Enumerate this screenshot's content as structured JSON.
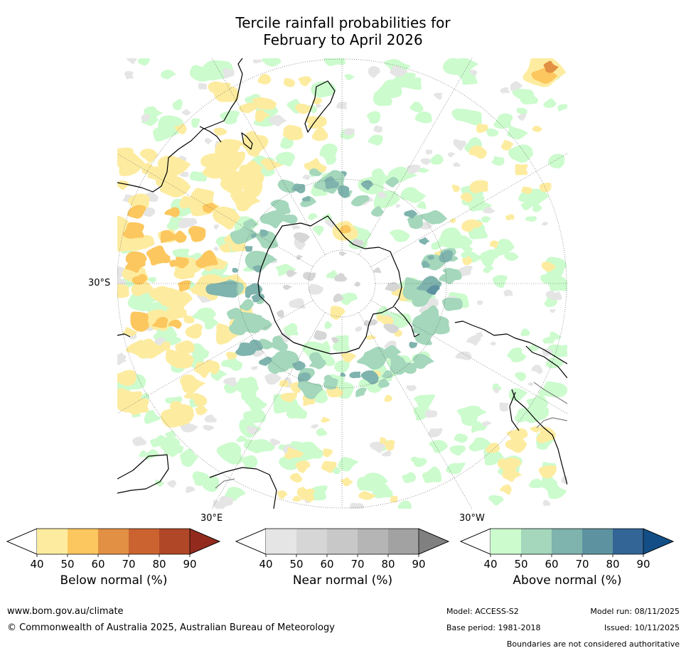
{
  "title": {
    "line1": "Tercile rainfall probabilities for",
    "line2": "February to April 2026"
  },
  "map": {
    "projection": "south-polar-stereographic",
    "center": "South Pole",
    "latitude_circles": [
      -30,
      -60,
      -80
    ],
    "meridian_spacing_deg": 30,
    "labels": {
      "lat_30s": "30°S",
      "lon_30e": "30°E",
      "lon_30w": "30°W"
    },
    "colors": {
      "coast": "#000000",
      "border": "#808080",
      "graticule": "#555555",
      "below_normal": [
        "#ffffff",
        "#fdeca0",
        "#fcc75e",
        "#e29043",
        "#cb6330",
        "#b04727",
        "#922b1e"
      ],
      "near_normal": [
        "#ffffff",
        "#e5e5e5",
        "#d6d6d6",
        "#c8c8c8",
        "#b5b5b5",
        "#a2a2a2",
        "#808080"
      ],
      "above_normal": [
        "#ffffff",
        "#ccfbcd",
        "#a4d7bb",
        "#7fb3ad",
        "#5d93a0",
        "#336596",
        "#134f86"
      ]
    }
  },
  "legends": [
    {
      "id": "below",
      "label": "Below normal (%)",
      "ticks": [
        "40",
        "50",
        "60",
        "70",
        "80",
        "90"
      ],
      "colors": [
        "#ffffff",
        "#fdeca0",
        "#fcc75e",
        "#e29043",
        "#cb6330",
        "#b04727",
        "#922b1e"
      ]
    },
    {
      "id": "near",
      "label": "Near normal (%)",
      "ticks": [
        "40",
        "50",
        "60",
        "70",
        "80",
        "90"
      ],
      "colors": [
        "#ffffff",
        "#e5e5e5",
        "#d6d6d6",
        "#c8c8c8",
        "#b5b5b5",
        "#a2a2a2",
        "#808080"
      ]
    },
    {
      "id": "above",
      "label": "Above normal (%)",
      "ticks": [
        "40",
        "50",
        "60",
        "70",
        "80",
        "90"
      ],
      "colors": [
        "#ffffff",
        "#ccfbcd",
        "#a4d7bb",
        "#7fb3ad",
        "#5d93a0",
        "#336596",
        "#134f86"
      ]
    }
  ],
  "footer": {
    "website": "www.bom.gov.au/climate",
    "copyright": "© Commonwealth of Australia 2025, Australian Bureau of Meteorology",
    "model": "Model: ACCESS-S2",
    "base_period": "Base period: 1981-2018",
    "model_run": "Model run: 08/11/2025",
    "issued": "Issued: 10/11/2025",
    "disclaimer": "Boundaries are not considered authoritative"
  }
}
